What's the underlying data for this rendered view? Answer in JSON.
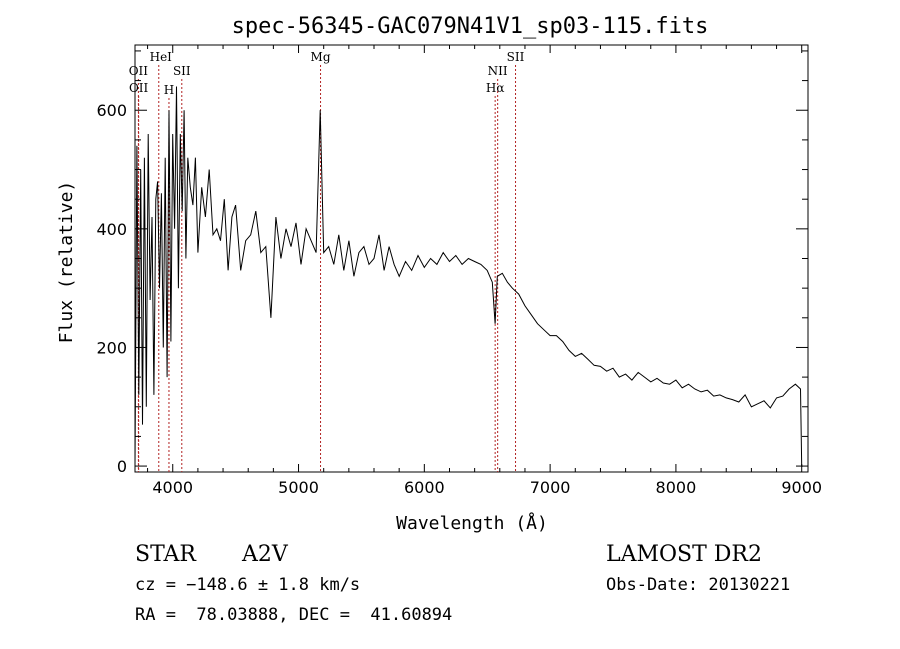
{
  "chart_data": {
    "type": "line",
    "title": "spec-56345-GAC079N41V1_sp03-115.fits",
    "xlabel": "Wavelength (Å)",
    "ylabel": "Flux (relative)",
    "xlim": [
      3700,
      9050
    ],
    "ylim": [
      -10,
      710
    ],
    "x_ticks": [
      4000,
      5000,
      6000,
      7000,
      8000,
      9000
    ],
    "y_ticks": [
      0,
      200,
      400,
      600
    ],
    "grid": false,
    "series": [
      {
        "name": "spectrum",
        "x": [
          3700,
          3715,
          3730,
          3745,
          3760,
          3775,
          3790,
          3805,
          3820,
          3835,
          3850,
          3865,
          3880,
          3895,
          3910,
          3925,
          3940,
          3955,
          3970,
          3985,
          4000,
          4015,
          4030,
          4045,
          4060,
          4075,
          4090,
          4105,
          4120,
          4140,
          4160,
          4180,
          4200,
          4230,
          4260,
          4290,
          4320,
          4350,
          4380,
          4410,
          4440,
          4470,
          4500,
          4540,
          4580,
          4620,
          4660,
          4700,
          4740,
          4780,
          4820,
          4860,
          4900,
          4940,
          4980,
          5020,
          5060,
          5100,
          5140,
          5172,
          5200,
          5240,
          5280,
          5320,
          5360,
          5400,
          5440,
          5480,
          5520,
          5560,
          5600,
          5640,
          5680,
          5720,
          5760,
          5800,
          5850,
          5900,
          5950,
          6000,
          6050,
          6100,
          6150,
          6200,
          6250,
          6300,
          6350,
          6400,
          6450,
          6500,
          6540,
          6563,
          6580,
          6620,
          6660,
          6700,
          6750,
          6800,
          6850,
          6900,
          6950,
          7000,
          7050,
          7100,
          7150,
          7200,
          7250,
          7300,
          7350,
          7400,
          7450,
          7500,
          7550,
          7600,
          7650,
          7700,
          7750,
          7800,
          7850,
          7900,
          7950,
          8000,
          8050,
          8100,
          8150,
          8200,
          8250,
          8300,
          8350,
          8400,
          8450,
          8500,
          8550,
          8600,
          8650,
          8700,
          8750,
          8800,
          8850,
          8900,
          8950,
          8990,
          9000,
          9010
        ],
        "y": [
          0,
          540,
          120,
          500,
          70,
          520,
          100,
          560,
          280,
          420,
          120,
          450,
          480,
          300,
          460,
          200,
          520,
          150,
          600,
          210,
          560,
          400,
          640,
          300,
          560,
          430,
          600,
          350,
          520,
          470,
          440,
          520,
          360,
          470,
          420,
          500,
          390,
          400,
          380,
          450,
          330,
          420,
          440,
          330,
          380,
          390,
          430,
          360,
          370,
          250,
          420,
          350,
          400,
          370,
          410,
          340,
          400,
          380,
          360,
          600,
          360,
          370,
          340,
          390,
          330,
          380,
          320,
          360,
          370,
          340,
          350,
          390,
          330,
          370,
          340,
          320,
          345,
          330,
          355,
          335,
          350,
          340,
          360,
          345,
          355,
          340,
          350,
          345,
          340,
          330,
          310,
          240,
          320,
          325,
          310,
          300,
          290,
          270,
          255,
          240,
          230,
          220,
          220,
          210,
          195,
          185,
          190,
          180,
          170,
          168,
          160,
          165,
          150,
          155,
          145,
          158,
          150,
          142,
          148,
          140,
          138,
          145,
          132,
          138,
          130,
          125,
          128,
          118,
          120,
          115,
          112,
          108,
          120,
          100,
          105,
          110,
          98,
          115,
          118,
          130,
          138,
          130,
          0,
          0
        ]
      }
    ],
    "annotations": [
      {
        "label": "OII",
        "x": 3727
      },
      {
        "label": "OII",
        "x": 3729
      },
      {
        "label": "HeI",
        "x": 3889
      },
      {
        "label": "H",
        "x": 3970
      },
      {
        "label": "SII",
        "x": 4072
      },
      {
        "label": "Mg",
        "x": 5175
      },
      {
        "label": "NII",
        "x": 6583
      },
      {
        "label": "Hα",
        "x": 6563
      },
      {
        "label": "SII",
        "x": 6725
      }
    ]
  },
  "info": {
    "object_class": "STAR",
    "subclass": "A2V",
    "survey": "LAMOST DR2",
    "redshift": "cz = −148.6 ± 1.8 km/s",
    "obs_date": "Obs-Date: 20130221",
    "coords": "RA =  78.03888, DEC =  41.60894"
  },
  "colors": {
    "spectrum": "#000000",
    "lines": "#b22222",
    "axis": "#000000"
  }
}
